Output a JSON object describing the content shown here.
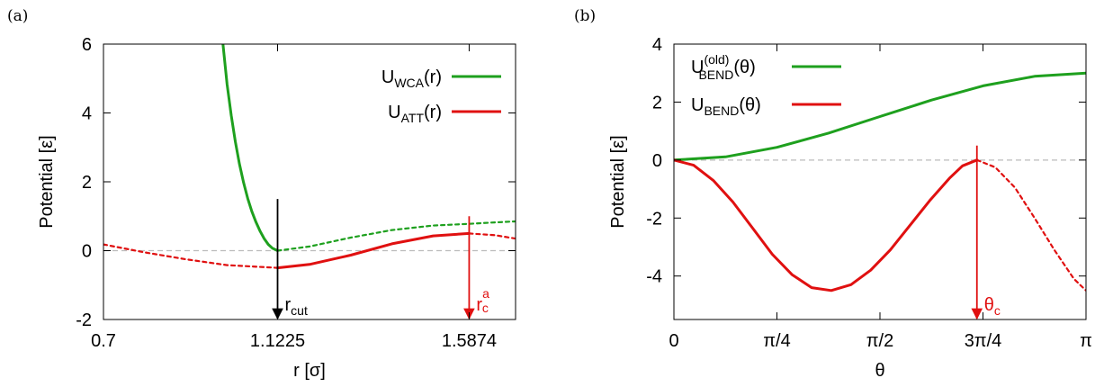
{
  "chart_data": [
    {
      "panel": "(a)",
      "type": "line",
      "xlabel": "r [σ]",
      "ylabel": "Potential [ε]",
      "xlim": [
        0.7,
        1.7
      ],
      "ylim": [
        -2,
        6
      ],
      "xticks": [
        {
          "value": 0.7,
          "label": "0.7"
        },
        {
          "value": 1.1225,
          "label": "1.1225"
        },
        {
          "value": 1.5874,
          "label": "1.5874"
        }
      ],
      "yticks": [
        {
          "value": -2,
          "label": "-2"
        },
        {
          "value": 0,
          "label": "0"
        },
        {
          "value": 2,
          "label": "2"
        },
        {
          "value": 4,
          "label": "4"
        },
        {
          "value": 6,
          "label": "6"
        }
      ],
      "legend": [
        {
          "base": "U",
          "sub": "WCA",
          "rest": "(r)",
          "color": "#1ea01e"
        },
        {
          "base": "U",
          "sub": "ATT",
          "rest": "(r)",
          "color": "#e01010"
        }
      ],
      "legend_position": "top-right",
      "zero_line": true,
      "series": [
        {
          "color": "#1ea01e",
          "style": "solid",
          "x": [
            0.99,
            1.0,
            1.01,
            1.02,
            1.03,
            1.04,
            1.05,
            1.06,
            1.07,
            1.08,
            1.09,
            1.1,
            1.11,
            1.1225
          ],
          "y": [
            6.0,
            4.83,
            3.93,
            3.16,
            2.52,
            1.98,
            1.52,
            1.14,
            0.83,
            0.57,
            0.35,
            0.18,
            0.07,
            0.0
          ]
        },
        {
          "color": "#1ea01e",
          "style": "dashed",
          "x": [
            1.1225,
            1.2,
            1.3,
            1.4,
            1.5,
            1.5874,
            1.65,
            1.7
          ],
          "y": [
            0.0,
            0.12,
            0.38,
            0.6,
            0.73,
            0.78,
            0.82,
            0.85
          ]
        },
        {
          "color": "#e01010",
          "style": "dashed",
          "x": [
            0.7,
            0.8,
            0.9,
            1.0,
            1.1225
          ],
          "y": [
            0.18,
            -0.05,
            -0.25,
            -0.42,
            -0.5
          ]
        },
        {
          "color": "#e01010",
          "style": "solid",
          "x": [
            1.1225,
            1.2,
            1.3,
            1.4,
            1.5,
            1.5874
          ],
          "y": [
            -0.5,
            -0.4,
            -0.13,
            0.2,
            0.43,
            0.5
          ]
        },
        {
          "color": "#e01010",
          "style": "dashed",
          "x": [
            1.5874,
            1.65,
            1.7
          ],
          "y": [
            0.5,
            0.45,
            0.35
          ]
        }
      ],
      "arrows": [
        {
          "x": 1.1225,
          "y_from": 1.5,
          "y_to": -2,
          "color": "#000000",
          "base": "r",
          "sub": "cut",
          "sup": ""
        },
        {
          "x": 1.5874,
          "y_from": 1.0,
          "y_to": -2,
          "color": "#e01010",
          "base": "r",
          "sub": "c",
          "sup": "a"
        }
      ]
    },
    {
      "panel": "(b)",
      "type": "line",
      "xlabel": "θ",
      "ylabel": "Potential [ε]",
      "xlim": [
        0,
        3.14159
      ],
      "ylim": [
        -5.5,
        4
      ],
      "xticks": [
        {
          "value": 0,
          "label": "0"
        },
        {
          "value": 0.7854,
          "label": "π/4"
        },
        {
          "value": 1.5708,
          "label": "π/2"
        },
        {
          "value": 2.3562,
          "label": "3π/4"
        },
        {
          "value": 3.14159,
          "label": "π"
        }
      ],
      "yticks": [
        {
          "value": -4,
          "label": "-4"
        },
        {
          "value": -2,
          "label": "-2"
        },
        {
          "value": 0,
          "label": "0"
        },
        {
          "value": 2,
          "label": "2"
        },
        {
          "value": 4,
          "label": "4"
        }
      ],
      "legend": [
        {
          "base": "U",
          "sub": "BEND",
          "sup": "(old)",
          "rest": "(θ)",
          "color": "#1ea01e"
        },
        {
          "base": "U",
          "sub": "BEND",
          "sup": "",
          "rest": "(θ)",
          "color": "#e01010"
        }
      ],
      "legend_position": "top-left",
      "zero_line": true,
      "series": [
        {
          "color": "#1ea01e",
          "style": "solid",
          "x": [
            0,
            0.3927,
            0.7854,
            1.1781,
            1.5708,
            1.9635,
            2.3562,
            2.7489,
            3.14159
          ],
          "y": [
            0.0,
            0.11,
            0.44,
            0.93,
            1.5,
            2.07,
            2.56,
            2.89,
            3.0
          ]
        },
        {
          "color": "#e01010",
          "style": "solid",
          "x": [
            0,
            0.15,
            0.3,
            0.45,
            0.6,
            0.75,
            0.9,
            1.05,
            1.2,
            1.35,
            1.5,
            1.65,
            1.8,
            1.95,
            2.1,
            2.2,
            2.31
          ],
          "y": [
            0.0,
            -0.18,
            -0.7,
            -1.45,
            -2.35,
            -3.25,
            -3.95,
            -4.4,
            -4.5,
            -4.3,
            -3.8,
            -3.1,
            -2.25,
            -1.4,
            -0.63,
            -0.2,
            0.0
          ]
        },
        {
          "color": "#e01010",
          "style": "dashed",
          "x": [
            2.31,
            2.45,
            2.6,
            2.75,
            2.9,
            3.05,
            3.14159
          ],
          "y": [
            0.0,
            -0.25,
            -0.95,
            -2.0,
            -3.1,
            -4.1,
            -4.5
          ]
        }
      ],
      "arrows": [
        {
          "x": 2.31,
          "y_from": 0.5,
          "y_to": -5.5,
          "color": "#e01010",
          "base": "θ",
          "sub": "c",
          "sup": ""
        }
      ]
    }
  ]
}
